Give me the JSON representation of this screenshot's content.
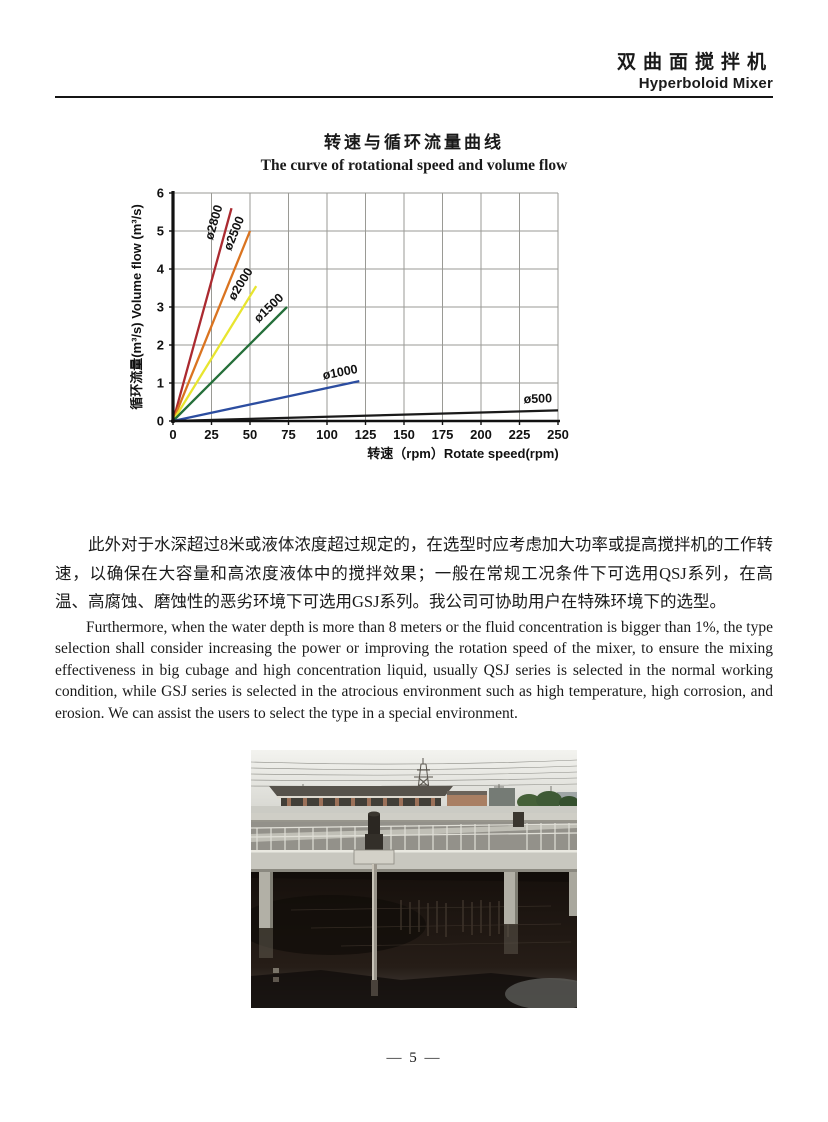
{
  "header": {
    "title_zh": "双曲面搅拌机",
    "title_en": "Hyperboloid Mixer"
  },
  "chart_data": {
    "type": "line",
    "title_zh": "转速与循环流量曲线",
    "title_en": "The curve of rotational speed and volume flow",
    "xlabel": "转速（rpm）Rotate speed(rpm)",
    "ylabel": "循环流量(m³/s) Volume flow (m³/s)",
    "xlim": [
      0,
      250
    ],
    "ylim": [
      0,
      6
    ],
    "xticks": [
      0,
      25,
      50,
      75,
      100,
      125,
      150,
      175,
      200,
      225,
      250
    ],
    "yticks": [
      0,
      1,
      2,
      3,
      4,
      5,
      6
    ],
    "grid": true,
    "grid_color": "#9a9a95",
    "axis_color": "#111111",
    "series": [
      {
        "name": "ø2800",
        "color": "#ab2a30",
        "points": [
          [
            0,
            0
          ],
          [
            38,
            5.6
          ]
        ],
        "label_at": [
          29,
          5.2
        ],
        "label_angle": -74
      },
      {
        "name": "ø2500",
        "color": "#da7420",
        "points": [
          [
            0,
            0
          ],
          [
            50,
            5.0
          ]
        ],
        "label_at": [
          42,
          4.9
        ],
        "label_angle": -68
      },
      {
        "name": "ø2000",
        "color": "#e8e52f",
        "points": [
          [
            0,
            0
          ],
          [
            54,
            3.55
          ]
        ],
        "label_at": [
          46,
          3.55
        ],
        "label_angle": -58
      },
      {
        "name": "ø1500",
        "color": "#256f3a",
        "points": [
          [
            0,
            0
          ],
          [
            74,
            3.0
          ]
        ],
        "label_at": [
          64,
          2.9
        ],
        "label_angle": -44
      },
      {
        "name": "ø1000",
        "color": "#2c4da0",
        "points": [
          [
            0,
            0
          ],
          [
            121,
            1.05
          ]
        ],
        "label_at": [
          109,
          1.18
        ],
        "label_angle": -11
      },
      {
        "name": "ø500",
        "color": "#1a1a1a",
        "points": [
          [
            0,
            0
          ],
          [
            250,
            0.28
          ]
        ],
        "label_at": [
          237,
          0.48
        ],
        "label_angle": -2
      }
    ]
  },
  "paragraphs": {
    "zh": "此外对于水深超过8米或液体浓度超过规定的，在选型时应考虑加大功率或提高搅拌机的工作转速，以确保在大容量和高浓度液体中的搅拌效果；一般在常规工况条件下可选用QSJ系列，在高温、高腐蚀、磨蚀性的恶劣环境下可选用GSJ系列。我公司可协助用户在特殊环境下的选型。",
    "en": "Furthermore, when the water depth is more than 8 meters or the fluid concentration is bigger than 1%, the type selection shall consider increasing the power or improving the rotation speed of the mixer, to ensure the mixing effectiveness in big cubage and high concentration liquid, usually QSJ series is selected in the normal working condition, while GSJ series is selected in the atrocious environment such as high temperature, high corrosion, and erosion. We can assist the users to select the type in a special environment."
  },
  "footer": {
    "page_number": "— 5 —"
  }
}
